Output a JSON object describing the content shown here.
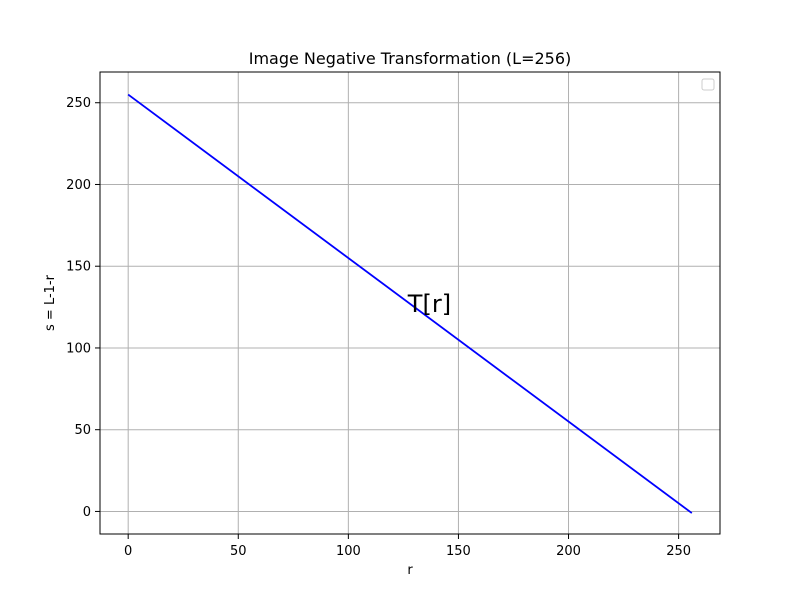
{
  "chart_data": {
    "type": "line",
    "title": "Image Negative Transformation (L=256)",
    "xlabel": "r",
    "ylabel": "s = L-1-r",
    "xlim": [
      -12.8,
      268.8
    ],
    "ylim": [
      -13.8,
      268.8
    ],
    "x_ticks": [
      0,
      50,
      100,
      150,
      200,
      250
    ],
    "y_ticks": [
      0,
      50,
      100,
      150,
      200,
      250
    ],
    "grid": true,
    "legend": "top-right",
    "series": [
      {
        "color": "#0000ff",
        "x": [
          0,
          256
        ],
        "y": [
          255,
          -1
        ]
      }
    ],
    "annotations": [
      {
        "text": "T[r]",
        "x": 127,
        "y": 127
      }
    ]
  }
}
